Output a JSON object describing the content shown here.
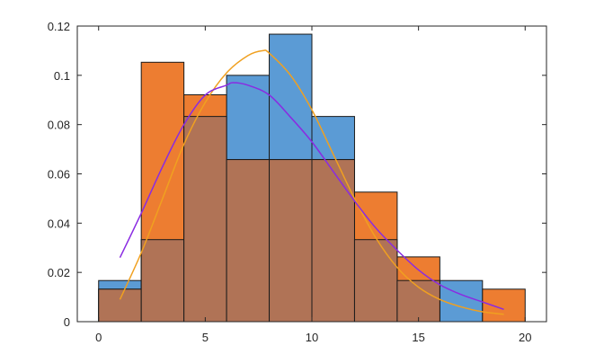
{
  "chart_data": {
    "type": "bar",
    "xlim": [
      -1,
      21
    ],
    "ylim": [
      0,
      0.12
    ],
    "xticks": [
      0,
      5,
      10,
      15,
      20
    ],
    "yticks": [
      0,
      0.02,
      0.04,
      0.06,
      0.08,
      0.1,
      0.12
    ],
    "ytick_labels": [
      "0",
      "0.02",
      "0.04",
      "0.06",
      "0.08",
      "0.1",
      "0.12"
    ],
    "bin_edges": [
      0,
      2,
      4,
      6,
      8,
      10,
      12,
      14,
      16,
      18,
      20
    ],
    "grid": false,
    "series": [
      {
        "values": [
          0.0167,
          0.0333,
          0.0833,
          0.1,
          0.1167,
          0.0833,
          0.0333,
          0.0167,
          0.0167,
          0
        ],
        "color": "#5b9bd5"
      },
      {
        "values": [
          0.0132,
          0.1053,
          0.0921,
          0.0658,
          0.0658,
          0.0658,
          0.0526,
          0.0263,
          0,
          0.0132
        ],
        "color": "#ed7d31"
      }
    ],
    "overlap_color": "#b07356",
    "fits": [
      {
        "color": "#f0a020",
        "x": [
          1,
          2,
          3,
          4,
          5,
          6,
          7,
          7.7,
          8,
          9,
          10,
          11,
          12,
          13,
          14,
          15,
          16,
          17,
          18,
          19
        ],
        "y": [
          0.009,
          0.028,
          0.05,
          0.072,
          0.089,
          0.101,
          0.108,
          0.11,
          0.109,
          0.1,
          0.086,
          0.068,
          0.05,
          0.034,
          0.022,
          0.014,
          0.009,
          0.006,
          0.004,
          0.003
        ]
      },
      {
        "color": "#8a2be2",
        "x": [
          1,
          2,
          3,
          4,
          5,
          6,
          6.3,
          7,
          8,
          9,
          10,
          11,
          12,
          13,
          14,
          15,
          16,
          17,
          18,
          19
        ],
        "y": [
          0.026,
          0.044,
          0.063,
          0.08,
          0.092,
          0.096,
          0.097,
          0.096,
          0.092,
          0.083,
          0.073,
          0.061,
          0.049,
          0.038,
          0.029,
          0.021,
          0.015,
          0.011,
          0.008,
          0.005
        ]
      }
    ]
  }
}
